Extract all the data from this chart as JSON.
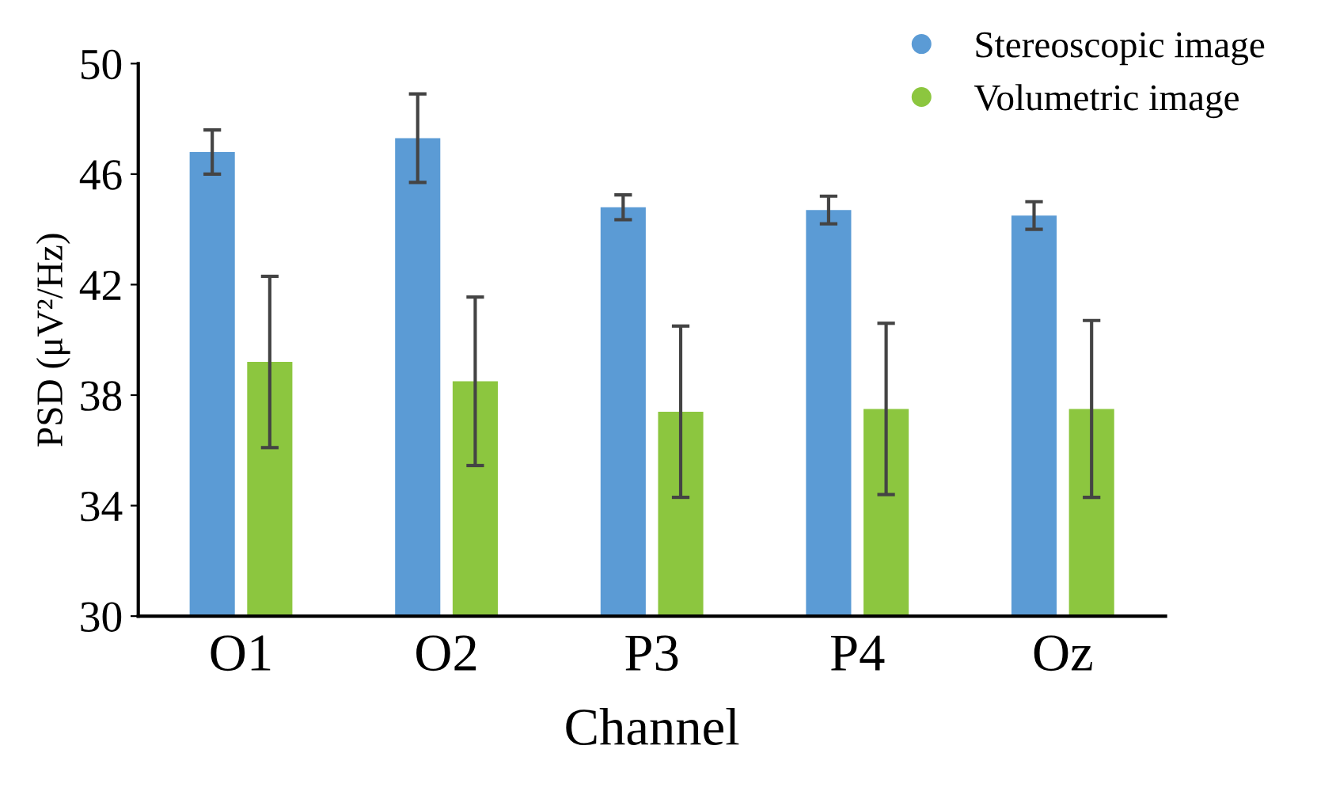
{
  "chart_data": {
    "type": "bar",
    "xlabel": "Channel",
    "ylabel": "PSD (μV²/Hz)",
    "categories": [
      "O1",
      "O2",
      "P3",
      "P4",
      "Oz"
    ],
    "series": [
      {
        "name": "Stereoscopic image",
        "color": "#5b9bd5",
        "values": [
          46.8,
          47.3,
          44.8,
          44.7,
          44.5
        ],
        "errors": [
          0.8,
          1.6,
          0.45,
          0.5,
          0.5
        ]
      },
      {
        "name": "Volumetric image",
        "color": "#8cc63f",
        "values": [
          39.2,
          38.5,
          37.4,
          37.5,
          37.5
        ],
        "errors": [
          3.1,
          3.05,
          3.1,
          3.1,
          3.2
        ]
      }
    ],
    "ylim": [
      30,
      50
    ],
    "yticks": [
      30,
      34,
      38,
      42,
      46,
      50
    ],
    "grid": false,
    "legend": "top right",
    "marker": "circle"
  }
}
